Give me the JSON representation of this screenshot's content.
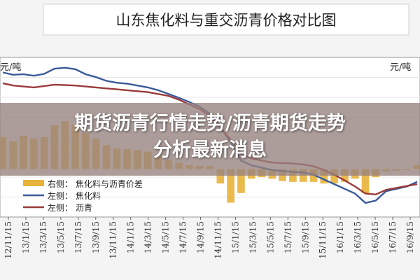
{
  "chart_data": {
    "type": "line",
    "title": "山东焦化料与重交沥青价格对比图",
    "left_unit": "元/吨",
    "right_unit": "元/吨",
    "x_ticks": [
      "12/11/15",
      "13/1/15",
      "13/3/15",
      "13/5/15",
      "13/7/15",
      "13/9/15",
      "13/11/15",
      "14/1/15",
      "14/3/15",
      "14/5/15",
      "14/7/15",
      "14/9/15",
      "14/11/15",
      "15/1/15",
      "15/3/15",
      "15/5/15",
      "15/7/15",
      "15/9/15",
      "15/11/15",
      "16/1/15",
      "16/3/15",
      "16/5/15",
      "16/7/15",
      "16/9/15"
    ],
    "legend": [
      {
        "label": "右侧： 焦化料与沥青价差",
        "color": "#e8b33a",
        "kind": "area"
      },
      {
        "label": "左侧： 焦化料",
        "color": "#3a5a9a",
        "kind": "line"
      },
      {
        "label": "左侧： 沥青",
        "color": "#9a3a3a",
        "kind": "line"
      }
    ],
    "ylim_left": [
      1800,
      5200
    ],
    "ylim_right": [
      -600,
      1400
    ],
    "series": [
      {
        "name": "焦化料",
        "axis": "left",
        "color": "#3a5a9a",
        "values": [
          4880,
          4830,
          4840,
          4810,
          4850,
          4960,
          4980,
          4950,
          4840,
          4780,
          4700,
          4660,
          4640,
          4600,
          4560,
          4500,
          4420,
          4340,
          4250,
          4150,
          4000,
          3700,
          3400,
          3000,
          2900,
          2850,
          2800,
          2780,
          2760,
          2750,
          2700,
          2600,
          2500,
          2400,
          2300,
          2100,
          2150,
          2350,
          2400,
          2450,
          2550
        ]
      },
      {
        "name": "沥青",
        "axis": "left",
        "color": "#9a3a3a",
        "values": [
          4650,
          4600,
          4580,
          4560,
          4590,
          4620,
          4610,
          4600,
          4580,
          4560,
          4540,
          4520,
          4500,
          4480,
          4460,
          4420,
          4380,
          4300,
          4200,
          4100,
          3950,
          3700,
          3450,
          3150,
          3050,
          3000,
          2960,
          2950,
          2940,
          2920,
          2880,
          2800,
          2700,
          2580,
          2450,
          2300,
          2280,
          2380,
          2420,
          2460,
          2500
        ]
      },
      {
        "name": "焦化料与沥青价差",
        "axis": "right",
        "color": "#e8b33a",
        "values": [
          400,
          350,
          420,
          380,
          400,
          550,
          600,
          560,
          450,
          380,
          300,
          260,
          250,
          240,
          220,
          180,
          120,
          80,
          50,
          40,
          40,
          -180,
          -420,
          -300,
          -120,
          -100,
          -120,
          -150,
          -160,
          -160,
          -160,
          -180,
          -180,
          -160,
          -120,
          -300,
          -100,
          -30,
          -20,
          -10,
          50
        ]
      }
    ]
  },
  "banner": {
    "line1": "期货沥青行情走势/沥青期货走势",
    "line2": "分析最新消息"
  }
}
